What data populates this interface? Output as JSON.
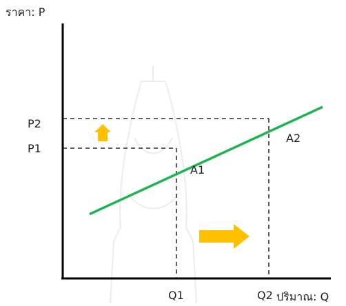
{
  "chart_data": {
    "type": "line",
    "ylabel": "ราคา: P",
    "xlabel": "ปริมาณ: Q",
    "x_ticks": [
      "Q1",
      "Q2"
    ],
    "y_ticks": [
      "P1",
      "P2"
    ],
    "series": [
      {
        "x": [
          0.15,
          1.45
        ],
        "y": [
          0.36,
          0.96
        ],
        "color": "#1db34f"
      }
    ],
    "points": [
      {
        "label": "A1",
        "x": 0.7,
        "y": 0.57
      },
      {
        "label": "A2",
        "x": 1.1,
        "y": 0.76
      }
    ],
    "xlim": [
      0,
      1.5
    ],
    "ylim": [
      0,
      1.2
    ],
    "grid": false,
    "arrows": [
      {
        "direction": "up",
        "color": "#ffc000"
      },
      {
        "direction": "right",
        "color": "#ffc000"
      }
    ],
    "watermark": "decorative faint gray outline"
  }
}
